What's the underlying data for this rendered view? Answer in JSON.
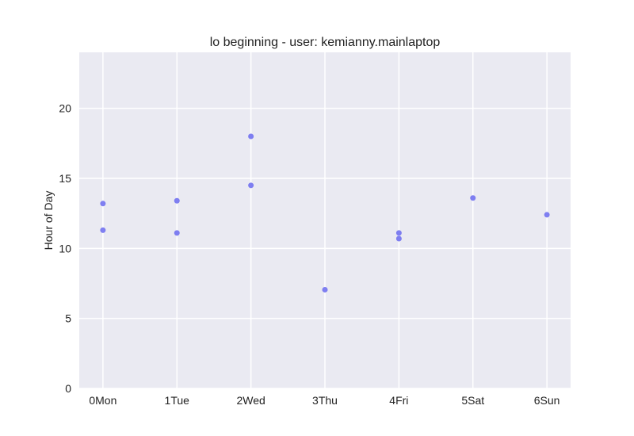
{
  "chart_data": {
    "type": "scatter",
    "title": "lo beginning - user: kemianny.mainlaptop",
    "xlabel": "",
    "ylabel": "Hour of Day",
    "categories": [
      "0Mon",
      "1Tue",
      "2Wed",
      "3Thu",
      "4Fri",
      "5Sat",
      "6Sun"
    ],
    "x_ticks": [
      0,
      1,
      2,
      3,
      4,
      5,
      6
    ],
    "y_ticks": [
      0,
      5,
      10,
      15,
      20
    ],
    "xlim": [
      -0.32,
      6.32
    ],
    "ylim": [
      0,
      24
    ],
    "grid": true,
    "background_color": "#eaeaf2",
    "grid_color": "#ffffff",
    "point_color": "#6a6af0",
    "series": [
      {
        "points": [
          {
            "x": 0,
            "y": 13.2
          },
          {
            "x": 0,
            "y": 11.3
          },
          {
            "x": 1,
            "y": 13.4
          },
          {
            "x": 1,
            "y": 11.1
          },
          {
            "x": 2,
            "y": 18.0
          },
          {
            "x": 2,
            "y": 14.5
          },
          {
            "x": 3,
            "y": 7.05
          },
          {
            "x": 4,
            "y": 11.1
          },
          {
            "x": 4,
            "y": 10.7
          },
          {
            "x": 5,
            "y": 13.6
          },
          {
            "x": 6,
            "y": 12.4
          }
        ]
      }
    ]
  }
}
